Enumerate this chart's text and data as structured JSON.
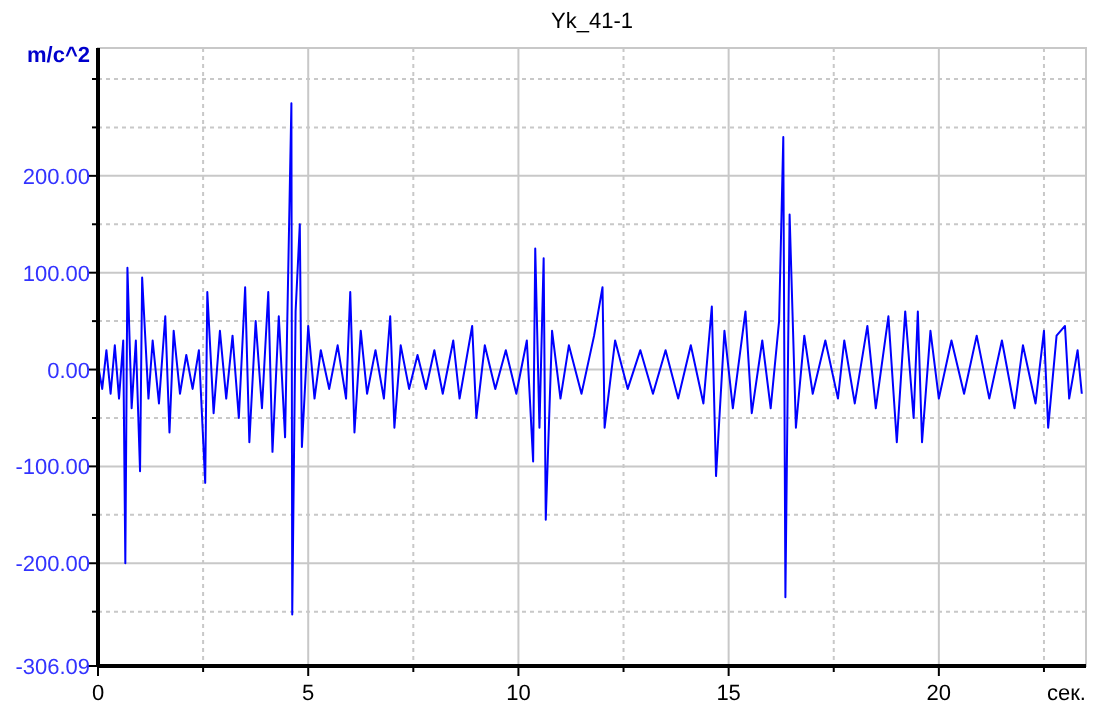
{
  "chart_data": {
    "type": "line",
    "title": "Yk_41-1",
    "xlabel": "сек.",
    "ylabel": "m/c^2",
    "xlim": [
      0,
      23.5
    ],
    "ylim": [
      -306.09,
      332
    ],
    "xticks": [
      0,
      {
        "value": 2.5,
        "label": null
      },
      5,
      {
        "value": 7.5,
        "label": null
      },
      10,
      {
        "value": 12.5,
        "label": null
      },
      15,
      {
        "value": 17.5,
        "label": null
      },
      20,
      {
        "value": 22.5,
        "label": null
      }
    ],
    "yticks": [
      {
        "value": -306.09,
        "label": "-306.09"
      },
      {
        "value": -250,
        "label": null
      },
      {
        "value": -200,
        "label": "-200.00"
      },
      {
        "value": -150,
        "label": null
      },
      {
        "value": -100,
        "label": "-100.00"
      },
      {
        "value": -50,
        "label": null
      },
      {
        "value": 0,
        "label": "0.00"
      },
      {
        "value": 50,
        "label": null
      },
      {
        "value": 100,
        "label": "100.00"
      },
      {
        "value": 150,
        "label": null
      },
      {
        "value": 200,
        "label": "200.00"
      },
      {
        "value": 250,
        "label": null
      },
      {
        "value": 300,
        "label": null
      }
    ],
    "grid": true,
    "marker": "none",
    "line_style": "solid",
    "series": [
      {
        "color": "#0000ff",
        "x": [
          0,
          0.1,
          0.2,
          0.3,
          0.4,
          0.5,
          0.6,
          0.65,
          0.7,
          0.8,
          0.9,
          1.0,
          1.05,
          1.2,
          1.3,
          1.45,
          1.6,
          1.7,
          1.8,
          1.95,
          2.1,
          2.25,
          2.4,
          2.55,
          2.6,
          2.75,
          2.9,
          3.05,
          3.2,
          3.35,
          3.5,
          3.6,
          3.75,
          3.9,
          4.05,
          4.15,
          4.3,
          4.45,
          4.6,
          4.62,
          4.7,
          4.8,
          4.85,
          5.0,
          5.15,
          5.3,
          5.5,
          5.7,
          5.9,
          6.0,
          6.1,
          6.25,
          6.4,
          6.6,
          6.8,
          6.95,
          7.05,
          7.2,
          7.4,
          7.6,
          7.8,
          8.0,
          8.2,
          8.45,
          8.6,
          8.9,
          9.0,
          9.2,
          9.45,
          9.7,
          9.95,
          10.2,
          10.35,
          10.4,
          10.5,
          10.6,
          10.65,
          10.8,
          11.0,
          11.2,
          11.5,
          11.8,
          12.0,
          12.05,
          12.3,
          12.6,
          12.9,
          13.2,
          13.5,
          13.8,
          14.1,
          14.4,
          14.6,
          14.7,
          14.9,
          15.1,
          15.4,
          15.55,
          15.8,
          16.0,
          16.2,
          16.3,
          16.35,
          16.45,
          16.6,
          16.8,
          17.0,
          17.3,
          17.6,
          17.75,
          18.0,
          18.3,
          18.5,
          18.8,
          19.0,
          19.2,
          19.4,
          19.5,
          19.6,
          19.8,
          20.0,
          20.3,
          20.6,
          20.9,
          21.2,
          21.5,
          21.8,
          22.0,
          22.3,
          22.5,
          22.6,
          22.8,
          23.0,
          23.1,
          23.3,
          23.4
        ],
        "values": [
          5,
          -20,
          20,
          -25,
          25,
          -30,
          30,
          -200,
          105,
          -40,
          30,
          -105,
          95,
          -30,
          30,
          -35,
          55,
          -65,
          40,
          -25,
          15,
          -20,
          20,
          -117,
          80,
          -45,
          40,
          -30,
          35,
          -50,
          85,
          -75,
          50,
          -40,
          80,
          -85,
          55,
          -70,
          275,
          -253,
          60,
          150,
          -80,
          45,
          -30,
          20,
          -20,
          25,
          -30,
          80,
          -65,
          40,
          -25,
          20,
          -30,
          55,
          -60,
          25,
          -20,
          15,
          -20,
          20,
          -25,
          30,
          -30,
          45,
          -50,
          25,
          -20,
          20,
          -25,
          30,
          -95,
          125,
          -60,
          115,
          -155,
          40,
          -30,
          25,
          -25,
          35,
          85,
          -60,
          30,
          -20,
          20,
          -25,
          20,
          -30,
          25,
          -35,
          65,
          -110,
          40,
          -40,
          60,
          -45,
          30,
          -40,
          50,
          240,
          -235,
          160,
          -60,
          35,
          -25,
          30,
          -30,
          30,
          -35,
          45,
          -40,
          55,
          -75,
          60,
          -50,
          60,
          -75,
          40,
          -30,
          30,
          -25,
          35,
          -30,
          30,
          -40,
          25,
          -35,
          40,
          -60,
          35,
          45,
          -30,
          20,
          -25
        ]
      }
    ]
  }
}
